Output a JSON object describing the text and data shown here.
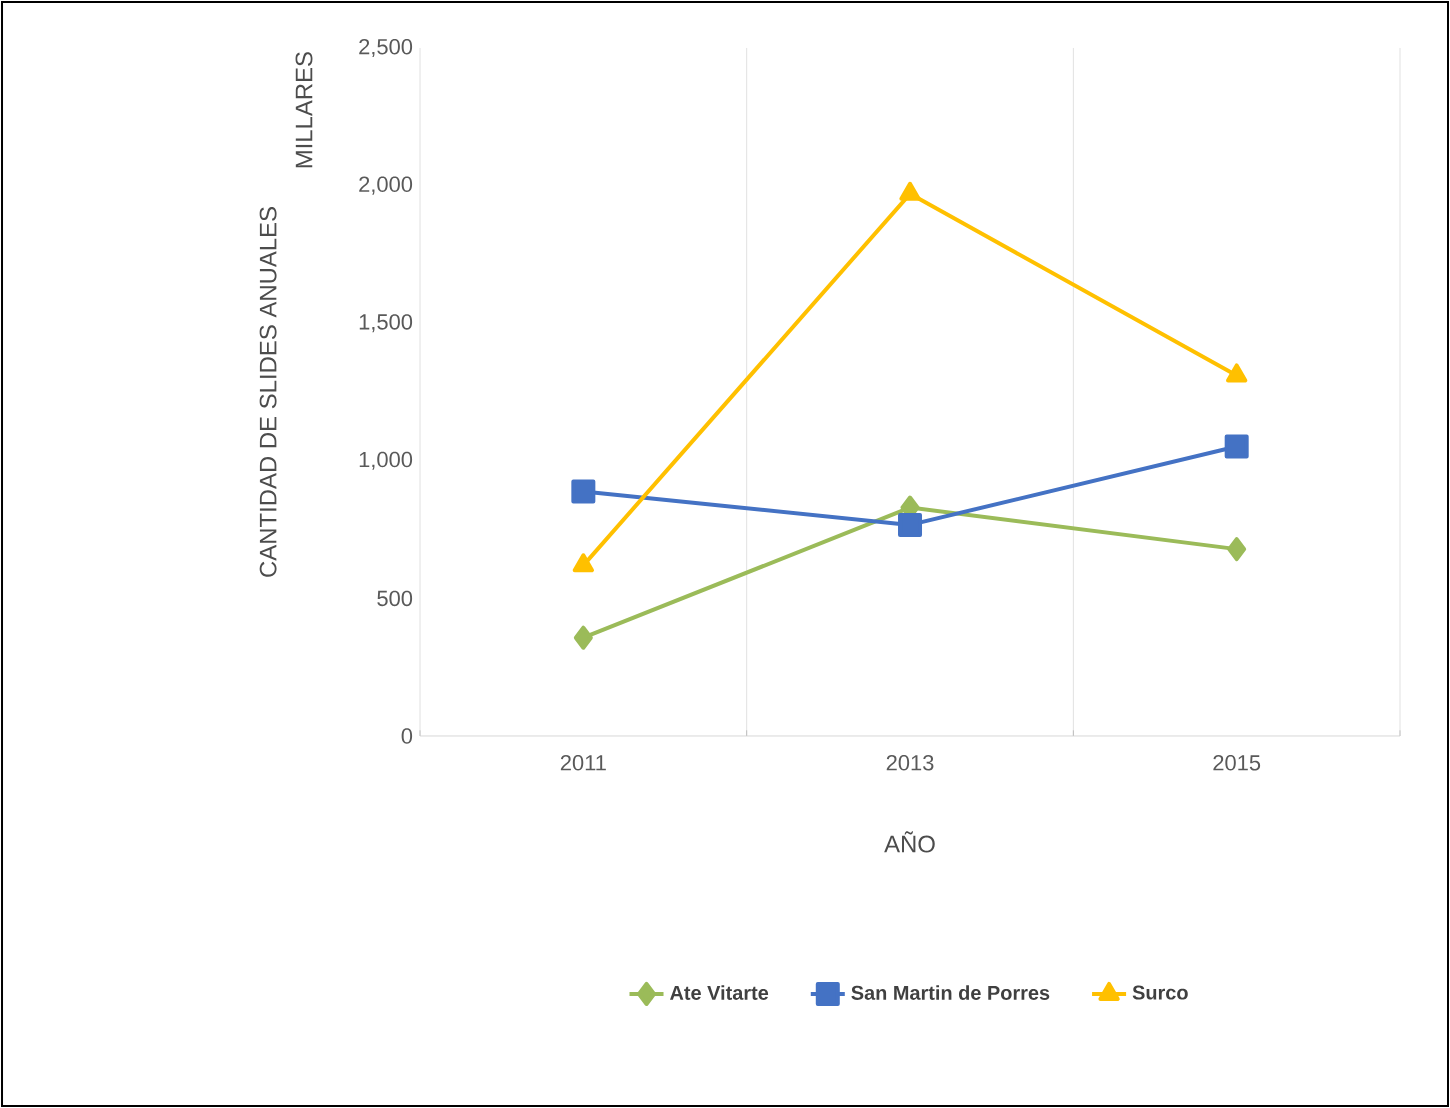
{
  "chart_data": {
    "type": "line",
    "xlabel": "AÑO",
    "ylabel": "CANTIDAD DE SLIDES  ANUALES",
    "annotations": [
      "MILLARES"
    ],
    "categories": [
      "2011",
      "2013",
      "2015"
    ],
    "series": [
      {
        "name": "Ate Vitarte",
        "color": "#9bbb59",
        "marker": "diamond",
        "values": [
          357,
          830,
          679
        ]
      },
      {
        "name": "San Martin de Porres",
        "color": "#4472c4",
        "marker": "square",
        "values": [
          888,
          767,
          1052
        ]
      },
      {
        "name": "Surco",
        "color": "#ffc000",
        "marker": "triangle",
        "values": [
          620,
          1970,
          1310
        ]
      }
    ],
    "ylim": [
      0,
      2500
    ],
    "yticks": [
      0,
      {
        "value": 500,
        "label": "500"
      },
      {
        "value": 1000,
        "label": "1,000"
      },
      {
        "value": 1500,
        "label": "1,500"
      },
      {
        "value": 2000,
        "label": "2,000"
      },
      {
        "value": 2500,
        "label": "2,500"
      }
    ],
    "grid": "x",
    "legend": "bottom",
    "line_style": "solid"
  }
}
